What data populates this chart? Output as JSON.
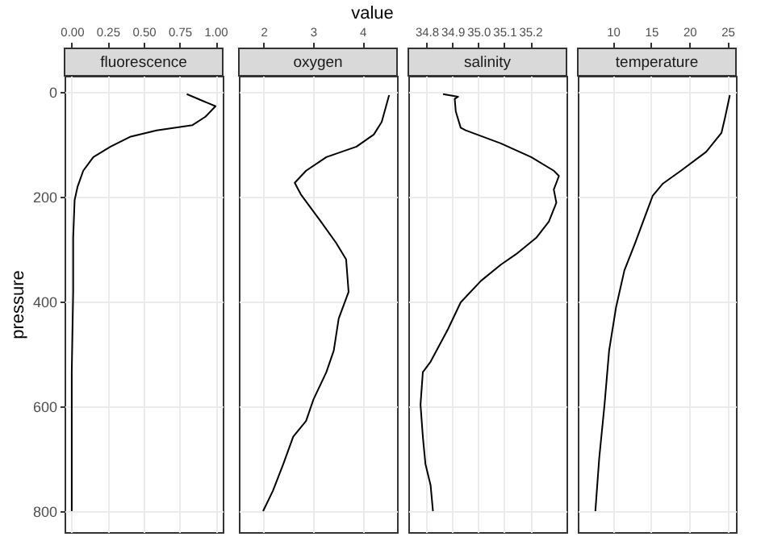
{
  "chart_data": [
    {
      "type": "line",
      "title": "fluorescence",
      "ylabel": "pressure",
      "orientation": "horizontal",
      "grid": true,
      "x": [
        5,
        28,
        48,
        64,
        74,
        86,
        105,
        125,
        151,
        182,
        207,
        279,
        382,
        535,
        800
      ],
      "series": [
        {
          "color": "#000000",
          "values": [
            0.8,
            1.0,
            0.93,
            0.84,
            0.59,
            0.41,
            0.27,
            0.15,
            0.08,
            0.04,
            0.02,
            0.01,
            0.01,
            0.0,
            0.0
          ]
        }
      ],
      "xlim": [
        -0.05,
        1.05
      ],
      "xticks": [
        {
          "value": 0,
          "label": "0.00"
        },
        {
          "value": 0.25,
          "label": "0.25"
        },
        {
          "value": 0.5,
          "label": "0.50"
        },
        {
          "value": 0.75,
          "label": "0.75"
        },
        {
          "value": 1,
          "label": "1.00"
        }
      ],
      "ylim": [
        840,
        -30
      ],
      "yticks": [
        0,
        200,
        400,
        600,
        800
      ]
    },
    {
      "type": "line",
      "title": "oxygen",
      "xlabel": "value",
      "orientation": "horizontal",
      "grid": true,
      "tick_labels": "x",
      "x": [
        7,
        58,
        82,
        105,
        125,
        151,
        174,
        197,
        248,
        289,
        320,
        382,
        433,
        494,
        535,
        587,
        628,
        658,
        710,
        761,
        800
      ],
      "series": [
        {
          "color": "#000000",
          "values": [
            4.54,
            4.39,
            4.23,
            3.88,
            3.27,
            2.86,
            2.63,
            2.76,
            3.16,
            3.47,
            3.67,
            3.72,
            3.52,
            3.42,
            3.27,
            3.01,
            2.86,
            2.6,
            2.4,
            2.19,
            1.99
          ]
        }
      ],
      "xlim": [
        1.5,
        4.7
      ],
      "xticks": [
        2,
        3,
        4
      ],
      "ylim": [
        840,
        -30
      ],
      "yticks": [
        0,
        200,
        400,
        600,
        800
      ]
    },
    {
      "type": "line",
      "title": "salinity",
      "orientation": "horizontal",
      "grid": true,
      "tick_labels": "x",
      "x": [
        5,
        10,
        14,
        38,
        69,
        74,
        99,
        125,
        151,
        161,
        187,
        212,
        248,
        279,
        310,
        330,
        361,
        402,
        453,
        515,
        535,
        597,
        658,
        710,
        751,
        800
      ],
      "series": [
        {
          "color": "#000000",
          "values": [
            34.864,
            34.922,
            34.909,
            34.913,
            34.932,
            34.951,
            35.087,
            35.204,
            35.291,
            35.311,
            35.291,
            35.301,
            35.272,
            35.223,
            35.146,
            35.087,
            35.01,
            34.932,
            34.883,
            34.816,
            34.786,
            34.777,
            34.786,
            34.796,
            34.816,
            34.825
          ]
        }
      ],
      "xlim": [
        34.73,
        35.34
      ],
      "xticks": [
        {
          "value": 34.8,
          "label": "34.8"
        },
        {
          "value": 34.9,
          "label": "34.9"
        },
        {
          "value": 35.0,
          "label": "35.0"
        },
        {
          "value": 35.1,
          "label": "35.1"
        },
        {
          "value": 35.2,
          "label": "35.2"
        }
      ],
      "ylim": [
        840,
        -30
      ],
      "yticks": [
        0,
        200,
        400,
        600,
        800
      ]
    },
    {
      "type": "line",
      "title": "temperature",
      "orientation": "horizontal",
      "grid": true,
      "tick_labels": "x",
      "x": [
        7,
        48,
        79,
        115,
        151,
        176,
        199,
        238,
        289,
        341,
        412,
        494,
        597,
        700,
        800
      ],
      "series": [
        {
          "color": "#000000",
          "values": [
            25.3,
            24.7,
            24.2,
            22.2,
            18.9,
            16.5,
            15.2,
            14.2,
            12.9,
            11.5,
            10.4,
            9.5,
            8.9,
            8.2,
            7.7
          ]
        }
      ],
      "xlim": [
        5.4,
        26.1
      ],
      "xticks": [
        10,
        15,
        20,
        25
      ],
      "ylim": [
        840,
        -30
      ],
      "yticks": [
        0,
        200,
        400,
        600,
        800
      ]
    }
  ]
}
